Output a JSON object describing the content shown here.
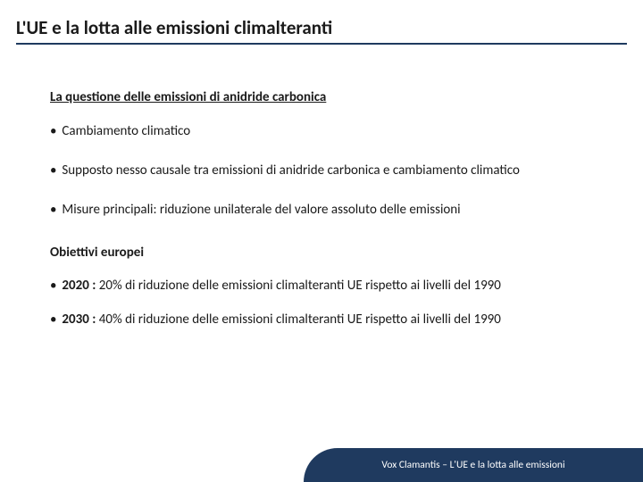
{
  "colors": {
    "background": "#ffffff",
    "text": "#1a1a1a",
    "accent": "#1f3a5f",
    "footer_text": "#ffffff"
  },
  "typography": {
    "title_fontsize": 21,
    "body_fontsize": 15,
    "footer_fontsize": 11.5,
    "title_weight": "bold"
  },
  "title": "L'UE e la lotta alle emissioni climalteranti",
  "section1": {
    "heading": "La questione delle emissioni di anidride carbonica",
    "bullets": [
      "Cambiamento climatico",
      "Supposto nesso causale tra emissioni di anidride carbonica e cambiamento climatico",
      "Misure principali: riduzione unilaterale del valore assoluto delle emissioni"
    ]
  },
  "section2": {
    "heading": "Obiettivi europei",
    "bullets": [
      {
        "bold": "2020 :",
        "rest": " 20% di riduzione delle emissioni climalteranti UE rispetto ai livelli del 1990"
      },
      {
        "bold": "2030 :",
        "rest": " 40% di riduzione delle emissioni climalteranti UE rispetto ai livelli del 1990"
      }
    ]
  },
  "footer": "Vox Clamantis – L'UE e la lotta alle emissioni"
}
